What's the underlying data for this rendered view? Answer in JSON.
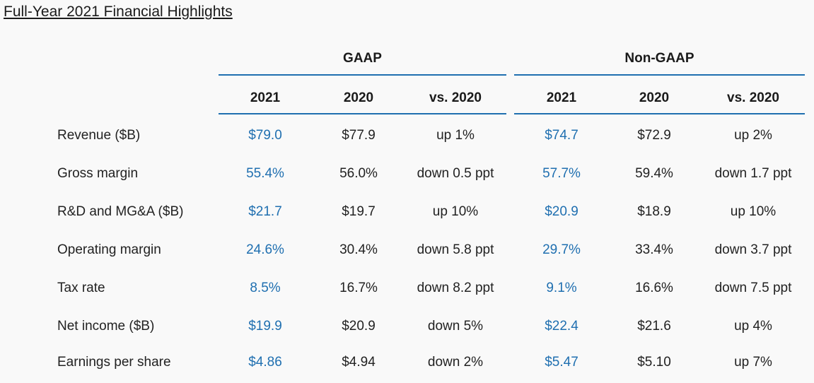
{
  "title": "Full-Year 2021 Financial Highlights",
  "colors": {
    "accent": "#1f6fb0",
    "text": "#222222",
    "background": "#f9f9f9"
  },
  "groups": [
    {
      "name": "GAAP",
      "columns": [
        "2021",
        "2020",
        "vs. 2020"
      ]
    },
    {
      "name": "Non-GAAP",
      "columns": [
        "2021",
        "2020",
        "vs. 2020"
      ]
    }
  ],
  "rows": [
    {
      "label": "Revenue ($B)",
      "gaap": [
        "$79.0",
        "$77.9",
        "up 1%"
      ],
      "non_gaap": [
        "$74.7",
        "$72.9",
        "up 2%"
      ]
    },
    {
      "label": "Gross margin",
      "gaap": [
        "55.4%",
        "56.0%",
        "down 0.5 ppt"
      ],
      "non_gaap": [
        "57.7%",
        "59.4%",
        "down 1.7 ppt"
      ]
    },
    {
      "label": "R&D and MG&A ($B)",
      "gaap": [
        "$21.7",
        "$19.7",
        "up 10%"
      ],
      "non_gaap": [
        "$20.9",
        "$18.9",
        "up 10%"
      ]
    },
    {
      "label": "Operating margin",
      "gaap": [
        "24.6%",
        "30.4%",
        "down 5.8 ppt"
      ],
      "non_gaap": [
        "29.7%",
        "33.4%",
        "down 3.7 ppt"
      ]
    },
    {
      "label": "Tax rate",
      "gaap": [
        "8.5%",
        "16.7%",
        "down 8.2 ppt"
      ],
      "non_gaap": [
        "9.1%",
        "16.6%",
        "down 7.5 ppt"
      ]
    },
    {
      "label": "Net income ($B)",
      "gaap": [
        "$19.9",
        "$20.9",
        "down 5%"
      ],
      "non_gaap": [
        "$22.4",
        "$21.6",
        "up 4%"
      ]
    },
    {
      "label": "Earnings per share",
      "gaap": [
        "$4.86",
        "$4.94",
        "down 2%"
      ],
      "non_gaap": [
        "$5.47",
        "$5.10",
        "up 7%"
      ]
    }
  ]
}
